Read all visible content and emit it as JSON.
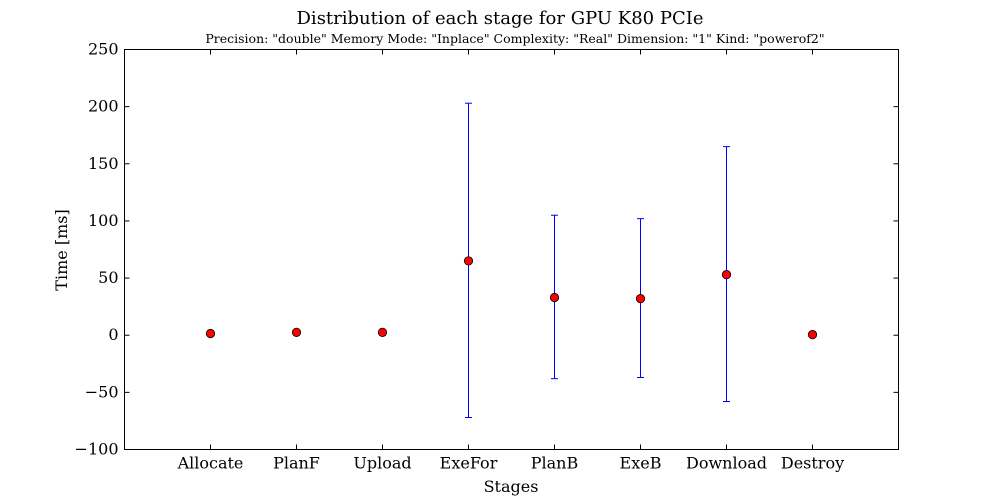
{
  "chart_data": {
    "type": "scatter",
    "title": "Distribution of each stage for GPU K80 PCIe",
    "subtitle": "Precision: \"double\" Memory Mode: \"Inplace\" Complexity: \"Real\" Dimension: \"1\" Kind: \"powerof2\"",
    "xlabel": "Stages",
    "ylabel": "Time [ms]",
    "ylim": [
      -100,
      250
    ],
    "yticks": [
      -100,
      -50,
      0,
      50,
      100,
      150,
      200,
      250
    ],
    "ytick_labels": [
      "−100",
      "−50",
      "0",
      "50",
      "100",
      "150",
      "200",
      "250"
    ],
    "categories": [
      "Allocate",
      "PlanF",
      "Upload",
      "ExeFor",
      "PlanB",
      "ExeB",
      "Download",
      "Destroy"
    ],
    "series": [
      {
        "values": [
          1.5,
          2.5,
          2.5,
          65,
          33,
          32,
          53,
          0.5
        ],
        "error_low": [
          1.5,
          2.5,
          2.5,
          -72,
          -38,
          -37,
          -58,
          0.5
        ],
        "error_high": [
          1.5,
          2.5,
          2.5,
          203,
          105,
          102,
          165,
          0.5
        ]
      }
    ],
    "marker_color": "#ff0000",
    "errorbar_color": "#0000ff",
    "grid": false,
    "legend": "none"
  }
}
